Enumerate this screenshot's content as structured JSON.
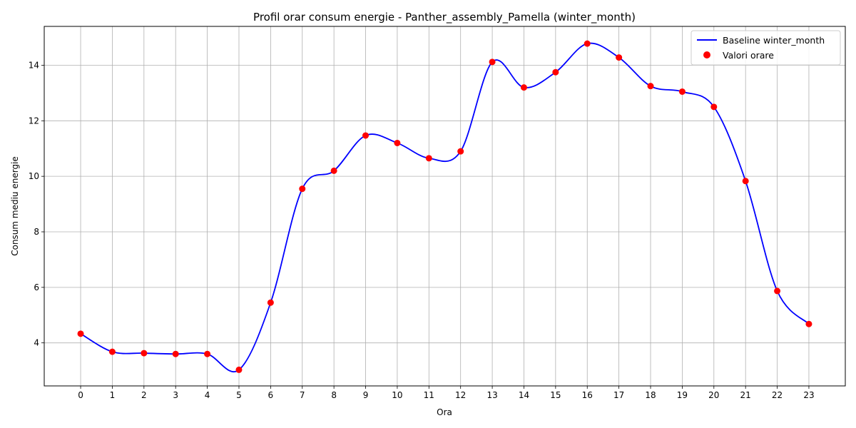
{
  "chart_data": {
    "type": "line",
    "title": "Profil orar consum energie - Panther_assembly_Pamella (winter_month)",
    "xlabel": "Ora",
    "ylabel": "Consum mediu energie",
    "x": [
      0,
      1,
      2,
      3,
      4,
      5,
      6,
      7,
      8,
      9,
      10,
      11,
      12,
      13,
      14,
      15,
      16,
      17,
      18,
      19,
      20,
      21,
      22,
      23
    ],
    "x_ticks": [
      "0",
      "1",
      "2",
      "3",
      "4",
      "5",
      "6",
      "7",
      "8",
      "9",
      "10",
      "11",
      "12",
      "13",
      "14",
      "15",
      "16",
      "17",
      "18",
      "19",
      "20",
      "21",
      "22",
      "23"
    ],
    "y_ticks": [
      "4",
      "6",
      "8",
      "10",
      "12",
      "14"
    ],
    "xlim": [
      -1.15,
      24.15
    ],
    "ylim": [
      2.45,
      15.4
    ],
    "grid": true,
    "legend_position": "upper right",
    "series": [
      {
        "name": "Baseline winter_month",
        "kind": "line",
        "color": "#0000ff",
        "smooth": true,
        "values": [
          4.33,
          3.68,
          3.63,
          3.6,
          3.6,
          3.03,
          5.45,
          9.55,
          10.2,
          11.47,
          11.2,
          10.65,
          10.9,
          14.12,
          13.2,
          13.75,
          14.78,
          14.28,
          13.25,
          13.05,
          12.5,
          9.83,
          5.87,
          4.68
        ]
      },
      {
        "name": "Valori orare",
        "kind": "scatter",
        "color": "#ff0000",
        "values": [
          4.33,
          3.68,
          3.63,
          3.6,
          3.6,
          3.03,
          5.45,
          9.55,
          10.2,
          11.47,
          11.2,
          10.65,
          10.9,
          14.12,
          13.2,
          13.75,
          14.78,
          14.28,
          13.25,
          13.05,
          12.5,
          9.83,
          5.87,
          4.68
        ]
      }
    ]
  }
}
